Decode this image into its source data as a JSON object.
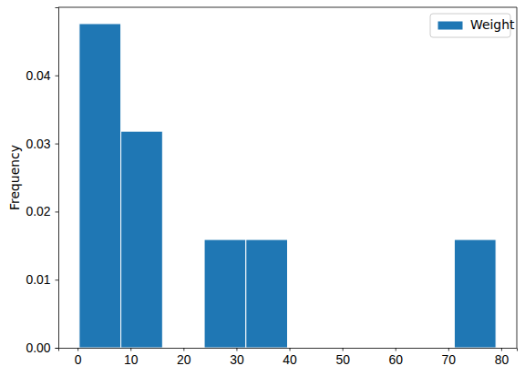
{
  "chart_data": {
    "type": "histogram",
    "y_label": "Frequency",
    "bins": [
      0.3,
      8.17,
      16.04,
      23.91,
      31.78,
      39.65,
      47.52,
      55.39,
      63.26,
      71.13,
      79.0
    ],
    "series": [
      {
        "name": "Weight",
        "color": "#1f77b4",
        "values": [
          0.0476,
          0.0318,
          0,
          0.0159,
          0.0159,
          0,
          0,
          0,
          0,
          0.0159
        ]
      }
    ],
    "xlim": [
      -3.64,
      82.94
    ],
    "xticks": [
      0,
      10,
      20,
      30,
      40,
      50,
      60,
      70,
      80
    ],
    "ylim": [
      0,
      0.05
    ],
    "yticks": [
      {
        "value": 0,
        "label": "0.00"
      },
      {
        "value": 0.01,
        "label": "0.01"
      },
      {
        "value": 0.02,
        "label": "0.02"
      },
      {
        "value": 0.03,
        "label": "0.03"
      },
      {
        "value": 0.04,
        "label": "0.04"
      }
    ],
    "legend": "upper right"
  }
}
